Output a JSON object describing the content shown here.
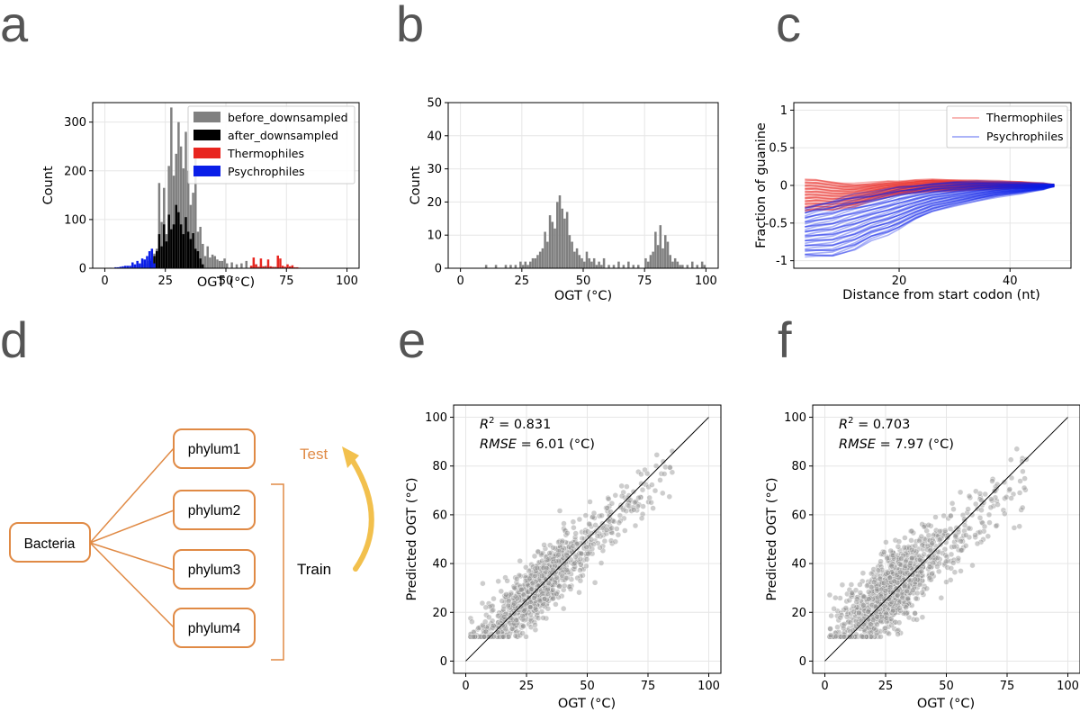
{
  "panels": {
    "a": {
      "letter": "a",
      "chart_data": {
        "type": "bar",
        "xlabel": "OGT (°C)",
        "ylabel": "Count",
        "xlim": [
          -5,
          105
        ],
        "ylim": [
          0,
          340
        ],
        "xticks": [
          0,
          25,
          50,
          75,
          100
        ],
        "yticks": [
          0,
          100,
          200,
          300
        ],
        "grid": true,
        "legend_position": "top-right",
        "bin_width": 1,
        "series": [
          {
            "name": "before_downsampled",
            "color": "#808080",
            "x": [
              12,
              14,
              15,
              16,
              17,
              18,
              19,
              20,
              21,
              22,
              23,
              24,
              25,
              26,
              27,
              28,
              29,
              30,
              31,
              32,
              33,
              34,
              35,
              36,
              37,
              38,
              39,
              40,
              41,
              42,
              43,
              44,
              45,
              46,
              47,
              48,
              49,
              50,
              52,
              54,
              56,
              58,
              60,
              62,
              64,
              66,
              70
            ],
            "values": [
              3,
              5,
              8,
              12,
              10,
              15,
              20,
              30,
              40,
              175,
              95,
              165,
              70,
              210,
              330,
              190,
              235,
              300,
              250,
              205,
              280,
              200,
              130,
              155,
              230,
              75,
              85,
              50,
              25,
              45,
              22,
              28,
              25,
              18,
              15,
              15,
              20,
              10,
              12,
              8,
              10,
              15,
              5,
              8,
              6,
              5,
              3
            ]
          },
          {
            "name": "after_downsampled",
            "color": "#000000",
            "x": [
              18,
              19,
              20,
              21,
              22,
              23,
              24,
              25,
              26,
              27,
              28,
              29,
              30,
              31,
              32,
              33,
              34,
              35,
              36,
              37,
              38,
              39,
              40
            ],
            "values": [
              15,
              20,
              25,
              35,
              70,
              45,
              90,
              55,
              110,
              80,
              90,
              130,
              115,
              90,
              70,
              105,
              75,
              60,
              72,
              40,
              35,
              20,
              8
            ]
          },
          {
            "name": "Thermophiles",
            "color": "#e8251f",
            "x": [
              60,
              61,
              62,
              63,
              64,
              65,
              66,
              67,
              68,
              69,
              70,
              71,
              72,
              73,
              74,
              75,
              76,
              77,
              78,
              79,
              80
            ],
            "values": [
              5,
              22,
              8,
              3,
              20,
              4,
              3,
              18,
              4,
              3,
              2,
              26,
              20,
              5,
              3,
              8,
              4,
              6,
              2,
              2,
              1
            ]
          },
          {
            "name": "Psychrophiles",
            "color": "#0a1ee8",
            "x": [
              2,
              4,
              5,
              6,
              7,
              8,
              9,
              10,
              11,
              12,
              13,
              14,
              15,
              16,
              17,
              18,
              19,
              20
            ],
            "values": [
              1,
              2,
              2,
              3,
              4,
              5,
              5,
              5,
              12,
              8,
              15,
              10,
              20,
              18,
              25,
              35,
              40,
              10
            ]
          }
        ]
      }
    },
    "b": {
      "letter": "b",
      "chart_data": {
        "type": "bar",
        "xlabel": "OGT (°C)",
        "ylabel": "Count",
        "xlim": [
          -5,
          105
        ],
        "ylim": [
          0,
          50
        ],
        "xticks": [
          0,
          25,
          50,
          75,
          100
        ],
        "yticks": [
          0,
          10,
          20,
          30,
          40,
          50
        ],
        "grid": true,
        "bin_width": 1,
        "series": [
          {
            "name": "",
            "color": "#808080",
            "x": [
              10,
              14,
              18,
              20,
              22,
              24,
              25,
              26,
              27,
              28,
              29,
              30,
              31,
              32,
              33,
              34,
              35,
              36,
              37,
              38,
              39,
              40,
              41,
              42,
              43,
              44,
              45,
              46,
              47,
              48,
              49,
              50,
              51,
              52,
              53,
              54,
              55,
              56,
              57,
              58,
              60,
              62,
              64,
              66,
              68,
              70,
              72,
              75,
              76,
              77,
              78,
              79,
              80,
              81,
              82,
              83,
              84,
              85,
              86,
              87,
              88,
              89,
              90,
              92,
              94,
              96,
              98,
              99
            ],
            "values": [
              1,
              1,
              1,
              1,
              1,
              2,
              1,
              2,
              1,
              2,
              3,
              3,
              4,
              5,
              6,
              11,
              8,
              16,
              14,
              12,
              20,
              22,
              18,
              15,
              17,
              10,
              8,
              5,
              6,
              4,
              3,
              2,
              5,
              3,
              2,
              3,
              1,
              2,
              1,
              3,
              1,
              1,
              2,
              1,
              2,
              1,
              1,
              3,
              2,
              4,
              5,
              11,
              7,
              13,
              6,
              10,
              8,
              4,
              2,
              3,
              2,
              1,
              1,
              1,
              2,
              1,
              2,
              1
            ]
          }
        ]
      }
    },
    "c": {
      "letter": "c",
      "chart_data": {
        "type": "line",
        "xlabel": "Distance from start codon (nt)",
        "ylabel": "Fraction of guanine",
        "xlim": [
          1,
          51
        ],
        "ylim": [
          -1.1,
          1.1
        ],
        "xticks": [
          20,
          40
        ],
        "yticks": [
          -1.0,
          -0.5,
          0.0,
          0.5,
          1.0
        ],
        "grid": true,
        "legend_position": "top-right",
        "x": [
          3,
          5,
          8,
          10,
          12,
          15,
          18,
          20,
          23,
          26,
          30,
          34,
          38,
          42,
          46,
          48
        ],
        "series": [
          {
            "name": "Thermophiles",
            "color": "#e8251f",
            "upper": [
              0.08,
              0.08,
              0.05,
              0.03,
              0.02,
              0.03,
              0.05,
              0.05,
              0.07,
              0.08,
              0.07,
              0.06,
              0.05,
              0.04,
              0.02,
              0.0
            ],
            "lower": [
              -0.35,
              -0.33,
              -0.33,
              -0.3,
              -0.28,
              -0.2,
              -0.15,
              -0.12,
              -0.1,
              -0.08,
              -0.07,
              -0.05,
              -0.04,
              -0.03,
              -0.02,
              0.0
            ]
          },
          {
            "name": "Psychrophiles",
            "color": "#0a1ee8",
            "upper": [
              -0.3,
              -0.25,
              -0.2,
              -0.15,
              -0.12,
              -0.1,
              -0.05,
              -0.02,
              0.0,
              0.03,
              0.05,
              0.05,
              0.04,
              0.03,
              0.02,
              0.0
            ],
            "lower": [
              -0.95,
              -0.95,
              -0.95,
              -0.9,
              -0.85,
              -0.72,
              -0.65,
              -0.58,
              -0.45,
              -0.35,
              -0.27,
              -0.2,
              -0.14,
              -0.1,
              -0.05,
              0.0
            ]
          }
        ]
      }
    },
    "d": {
      "letter": "d",
      "root": "Bacteria",
      "nodes": [
        "phylum1",
        "phylum2",
        "phylum3",
        "phylum4"
      ],
      "test_label": "Test",
      "train_label": "Train",
      "colors": {
        "box": "#e08a45",
        "test": "#e08a45",
        "arrow": "#f2c04d",
        "train": "#000000"
      }
    },
    "e": {
      "letter": "e",
      "stats": {
        "r2": "= 0.831",
        "rmse": "= 6.01 (°C)"
      },
      "chart_data": {
        "type": "scatter",
        "xlabel": "OGT (°C)",
        "ylabel": "Predicted OGT (°C)",
        "xlim": [
          -5,
          105
        ],
        "ylim": [
          -5,
          105
        ],
        "xticks": [
          0,
          25,
          50,
          75,
          100
        ],
        "yticks": [
          0,
          20,
          40,
          60,
          80,
          100
        ],
        "grid": true,
        "identity_line": [
          0,
          100
        ],
        "r2": 0.831,
        "rmse": 6.01,
        "point_color": "#909090",
        "point_cloud": {
          "n": 1200,
          "x_mode": 28,
          "x_min": 2,
          "x_max": 95,
          "slope": 0.92,
          "intercept": 2.5,
          "noise_sd": 6.0
        }
      }
    },
    "f": {
      "letter": "f",
      "stats": {
        "r2": "= 0.703",
        "rmse": "= 7.97 (°C)"
      },
      "chart_data": {
        "type": "scatter",
        "xlabel": "OGT (°C)",
        "ylabel": "Predicted OGT (°C)",
        "xlim": [
          -5,
          105
        ],
        "ylim": [
          -5,
          105
        ],
        "xticks": [
          0,
          25,
          50,
          75,
          100
        ],
        "yticks": [
          0,
          20,
          40,
          60,
          80,
          100
        ],
        "grid": true,
        "identity_line": [
          0,
          100
        ],
        "r2": 0.703,
        "rmse": 7.97,
        "point_color": "#909090",
        "point_cloud": {
          "n": 1200,
          "x_mode": 28,
          "x_min": 2,
          "x_max": 95,
          "slope": 0.82,
          "intercept": 6.0,
          "noise_sd": 7.5
        }
      }
    }
  }
}
